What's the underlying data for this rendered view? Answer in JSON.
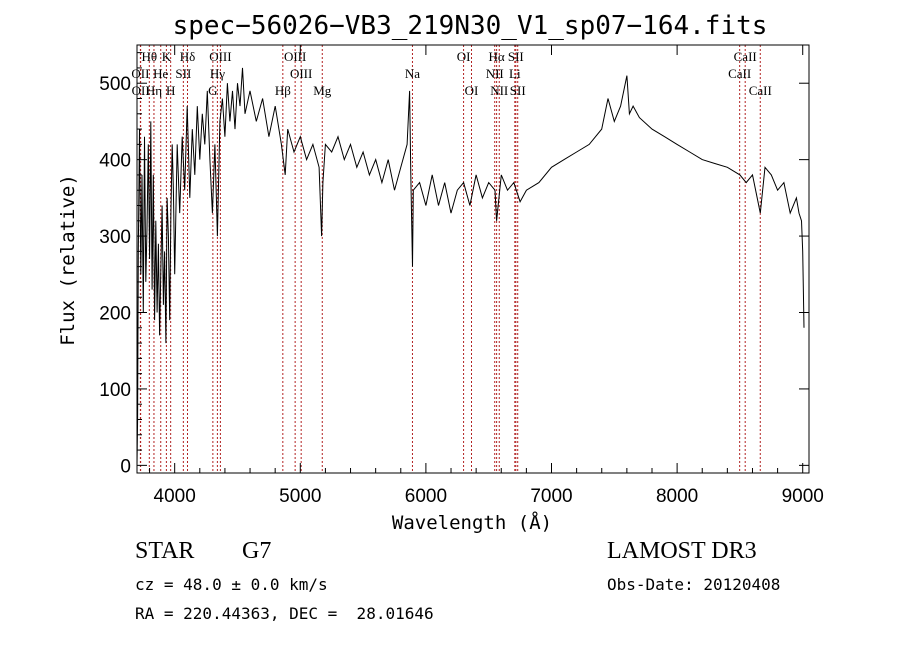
{
  "chart_data": {
    "type": "line",
    "title": "spec−56026−VB3_219N30_V1_sp07−164.fits",
    "xlabel": "Wavelength (Å)",
    "ylabel": "Flux (relative)",
    "xlim": [
      3700,
      9050
    ],
    "ylim": [
      -10,
      550
    ],
    "xticks": [
      4000,
      5000,
      6000,
      7000,
      8000,
      9000
    ],
    "yticks": [
      0,
      100,
      200,
      300,
      400,
      500
    ],
    "series": [
      {
        "name": "spectrum",
        "points": [
          [
            3700,
            0
          ],
          [
            3705,
            60
          ],
          [
            3710,
            280
          ],
          [
            3720,
            440
          ],
          [
            3730,
            250
          ],
          [
            3740,
            380
          ],
          [
            3750,
            200
          ],
          [
            3760,
            430
          ],
          [
            3770,
            240
          ],
          [
            3780,
            310
          ],
          [
            3790,
            420
          ],
          [
            3800,
            270
          ],
          [
            3810,
            450
          ],
          [
            3820,
            230
          ],
          [
            3830,
            380
          ],
          [
            3840,
            190
          ],
          [
            3850,
            320
          ],
          [
            3860,
            200
          ],
          [
            3870,
            290
          ],
          [
            3880,
            170
          ],
          [
            3890,
            260
          ],
          [
            3900,
            340
          ],
          [
            3910,
            210
          ],
          [
            3920,
            280
          ],
          [
            3930,
            160
          ],
          [
            3940,
            350
          ],
          [
            3950,
            300
          ],
          [
            3960,
            190
          ],
          [
            3970,
            330
          ],
          [
            3980,
            420
          ],
          [
            3990,
            360
          ],
          [
            4000,
            250
          ],
          [
            4020,
            420
          ],
          [
            4040,
            330
          ],
          [
            4060,
            430
          ],
          [
            4080,
            360
          ],
          [
            4100,
            470
          ],
          [
            4120,
            350
          ],
          [
            4140,
            440
          ],
          [
            4160,
            380
          ],
          [
            4180,
            470
          ],
          [
            4200,
            400
          ],
          [
            4220,
            460
          ],
          [
            4240,
            420
          ],
          [
            4260,
            490
          ],
          [
            4280,
            400
          ],
          [
            4300,
            330
          ],
          [
            4320,
            420
          ],
          [
            4340,
            300
          ],
          [
            4360,
            450
          ],
          [
            4380,
            480
          ],
          [
            4400,
            430
          ],
          [
            4420,
            500
          ],
          [
            4440,
            450
          ],
          [
            4460,
            490
          ],
          [
            4480,
            440
          ],
          [
            4500,
            500
          ],
          [
            4520,
            470
          ],
          [
            4540,
            520
          ],
          [
            4560,
            460
          ],
          [
            4600,
            490
          ],
          [
            4650,
            450
          ],
          [
            4700,
            480
          ],
          [
            4750,
            430
          ],
          [
            4800,
            470
          ],
          [
            4850,
            420
          ],
          [
            4880,
            380
          ],
          [
            4900,
            440
          ],
          [
            4950,
            410
          ],
          [
            5000,
            430
          ],
          [
            5050,
            400
          ],
          [
            5100,
            420
          ],
          [
            5150,
            390
          ],
          [
            5170,
            300
          ],
          [
            5180,
            370
          ],
          [
            5200,
            420
          ],
          [
            5250,
            410
          ],
          [
            5300,
            430
          ],
          [
            5350,
            400
          ],
          [
            5400,
            420
          ],
          [
            5450,
            390
          ],
          [
            5500,
            410
          ],
          [
            5550,
            380
          ],
          [
            5600,
            400
          ],
          [
            5650,
            370
          ],
          [
            5700,
            400
          ],
          [
            5750,
            360
          ],
          [
            5800,
            390
          ],
          [
            5850,
            420
          ],
          [
            5870,
            490
          ],
          [
            5880,
            380
          ],
          [
            5893,
            260
          ],
          [
            5900,
            360
          ],
          [
            5950,
            370
          ],
          [
            6000,
            340
          ],
          [
            6050,
            380
          ],
          [
            6100,
            340
          ],
          [
            6150,
            370
          ],
          [
            6200,
            330
          ],
          [
            6250,
            360
          ],
          [
            6300,
            370
          ],
          [
            6350,
            340
          ],
          [
            6400,
            380
          ],
          [
            6450,
            350
          ],
          [
            6500,
            370
          ],
          [
            6550,
            360
          ],
          [
            6563,
            320
          ],
          [
            6600,
            380
          ],
          [
            6650,
            360
          ],
          [
            6700,
            370
          ],
          [
            6750,
            345
          ],
          [
            6800,
            360
          ],
          [
            6900,
            370
          ],
          [
            7000,
            390
          ],
          [
            7100,
            400
          ],
          [
            7200,
            410
          ],
          [
            7300,
            420
          ],
          [
            7400,
            440
          ],
          [
            7450,
            480
          ],
          [
            7500,
            450
          ],
          [
            7550,
            470
          ],
          [
            7600,
            510
          ],
          [
            7620,
            460
          ],
          [
            7650,
            470
          ],
          [
            7700,
            455
          ],
          [
            7800,
            440
          ],
          [
            7900,
            430
          ],
          [
            8000,
            420
          ],
          [
            8100,
            410
          ],
          [
            8200,
            400
          ],
          [
            8300,
            395
          ],
          [
            8400,
            390
          ],
          [
            8500,
            380
          ],
          [
            8550,
            370
          ],
          [
            8600,
            380
          ],
          [
            8662,
            330
          ],
          [
            8700,
            390
          ],
          [
            8750,
            380
          ],
          [
            8800,
            360
          ],
          [
            8850,
            370
          ],
          [
            8900,
            330
          ],
          [
            8950,
            350
          ],
          [
            8970,
            330
          ],
          [
            8990,
            320
          ],
          [
            9000,
            280
          ],
          [
            9010,
            180
          ]
        ]
      }
    ],
    "spectral_lines": [
      {
        "label": "Hθ",
        "x": 3798,
        "row": 1
      },
      {
        "label": "OII",
        "x": 3727,
        "row": 2
      },
      {
        "label": "OII",
        "x": 3729,
        "row": 3
      },
      {
        "label": "Hη",
        "x": 3835,
        "row": 3
      },
      {
        "label": "He",
        "x": 3889,
        "row": 2
      },
      {
        "label": "K",
        "x": 3934,
        "row": 1
      },
      {
        "label": "H",
        "x": 3968,
        "row": 3
      },
      {
        "label": "SII",
        "x": 4069,
        "row": 2
      },
      {
        "label": "Hδ",
        "x": 4102,
        "row": 1
      },
      {
        "label": "OIII",
        "x": 4364,
        "row": 1
      },
      {
        "label": "Hγ",
        "x": 4340,
        "row": 2
      },
      {
        "label": "G",
        "x": 4304,
        "row": 3
      },
      {
        "label": "Hβ",
        "x": 4861,
        "row": 3
      },
      {
        "label": "OIII",
        "x": 4959,
        "row": 1
      },
      {
        "label": "OIII",
        "x": 5007,
        "row": 2
      },
      {
        "label": "Mg",
        "x": 5175,
        "row": 3
      },
      {
        "label": "Na",
        "x": 5893,
        "row": 2
      },
      {
        "label": "OI",
        "x": 6300,
        "row": 1
      },
      {
        "label": "OI",
        "x": 6363,
        "row": 3
      },
      {
        "label": "Hα",
        "x": 6563,
        "row": 1
      },
      {
        "label": "NII",
        "x": 6548,
        "row": 2
      },
      {
        "label": "NII",
        "x": 6584,
        "row": 3
      },
      {
        "label": "SII",
        "x": 6716,
        "row": 1
      },
      {
        "label": "Li",
        "x": 6708,
        "row": 2
      },
      {
        "label": "SII",
        "x": 6731,
        "row": 3
      },
      {
        "label": "CaII",
        "x": 8542,
        "row": 1
      },
      {
        "label": "CaII",
        "x": 8498,
        "row": 2
      },
      {
        "label": "CaII",
        "x": 8662,
        "row": 3
      }
    ]
  },
  "info": {
    "class_label": "STAR",
    "subclass": "G7",
    "survey": "LAMOST DR3",
    "redshift": "cz = 48.0 ± 0.0 km/s",
    "obs_date": "Obs-Date: 20120408",
    "coords": "RA = 220.44363, DEC =  28.01646"
  },
  "colors": {
    "spectrum": "#000000",
    "line_marker": "#b22222",
    "axes": "#000000"
  }
}
